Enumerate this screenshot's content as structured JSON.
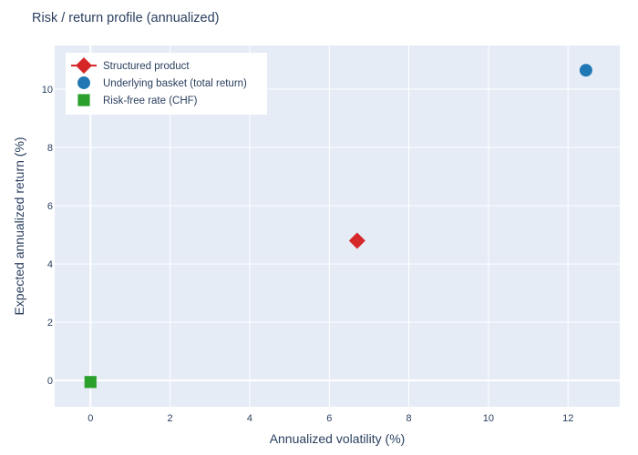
{
  "chart_data": {
    "type": "scatter",
    "title": "Risk / return profile (annualized)",
    "xlabel": "Annualized volatility (%)",
    "ylabel": "Expected annualized return (%)",
    "xlim": [
      -0.9,
      13.3
    ],
    "ylim": [
      -0.9,
      11.5
    ],
    "xticks": [
      0,
      2,
      4,
      6,
      8,
      10,
      12
    ],
    "yticks": [
      0,
      2,
      4,
      6,
      8,
      10
    ],
    "grid": true,
    "legend_position": "top-left",
    "background": "#e5ecf6",
    "series": [
      {
        "name": "Structured product",
        "marker": "diamond",
        "line_in_legend": true,
        "color": "#d62728",
        "points": [
          {
            "x": 6.7,
            "y": 4.8
          }
        ]
      },
      {
        "name": "Underlying basket (total return)",
        "marker": "circle",
        "line_in_legend": false,
        "color": "#1f77b4",
        "points": [
          {
            "x": 12.45,
            "y": 10.65
          }
        ]
      },
      {
        "name": "Risk-free rate (CHF)",
        "marker": "square",
        "line_in_legend": false,
        "color": "#2ca02c",
        "points": [
          {
            "x": 0.0,
            "y": -0.05
          }
        ]
      }
    ]
  }
}
